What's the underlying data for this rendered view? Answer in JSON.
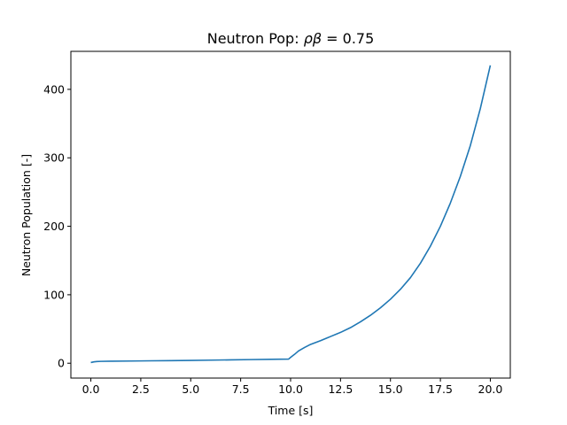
{
  "chart_data": {
    "type": "line",
    "title_main": "Neutron Pop: ",
    "title_symbol": "ρβ",
    "title_value": " = 0.75",
    "xlabel": "Time [s]",
    "ylabel": "Neutron Population [-]",
    "xlim": [
      -1.0,
      21.0
    ],
    "ylim": [
      -21.7,
      455.5
    ],
    "xticks": [
      0.0,
      2.5,
      5.0,
      7.5,
      10.0,
      12.5,
      15.0,
      17.5,
      20.0
    ],
    "xtick_labels": [
      "0.0",
      "2.5",
      "5.0",
      "7.5",
      "10.0",
      "12.5",
      "15.0",
      "17.5",
      "20.0"
    ],
    "yticks": [
      0,
      100,
      200,
      300,
      400
    ],
    "ytick_labels": [
      "0",
      "100",
      "200",
      "300",
      "400"
    ],
    "grid": false,
    "series": [
      {
        "color": "#1f77b4",
        "x": [
          0.0,
          0.15,
          0.3,
          0.5,
          1.0,
          2.0,
          3.0,
          4.0,
          5.0,
          6.0,
          7.0,
          8.0,
          9.0,
          9.9,
          10.0,
          10.2,
          10.4,
          10.7,
          11.0,
          11.5,
          12.0,
          12.5,
          13.0,
          13.5,
          14.0,
          14.5,
          15.0,
          15.5,
          16.0,
          16.5,
          17.0,
          17.5,
          18.0,
          18.5,
          19.0,
          19.5,
          20.0
        ],
        "y": [
          1.0,
          2.0,
          2.5,
          2.7,
          2.9,
          3.2,
          3.5,
          3.8,
          4.1,
          4.5,
          4.9,
          5.3,
          5.7,
          6.0,
          8.5,
          13.0,
          18.0,
          23.0,
          27.5,
          33.0,
          39.0,
          45.0,
          52.0,
          60.5,
          70.0,
          81.0,
          93.5,
          108.0,
          125.0,
          146.0,
          171.0,
          200.0,
          234.0,
          273.0,
          318.0,
          372.0,
          435.0
        ]
      }
    ]
  }
}
